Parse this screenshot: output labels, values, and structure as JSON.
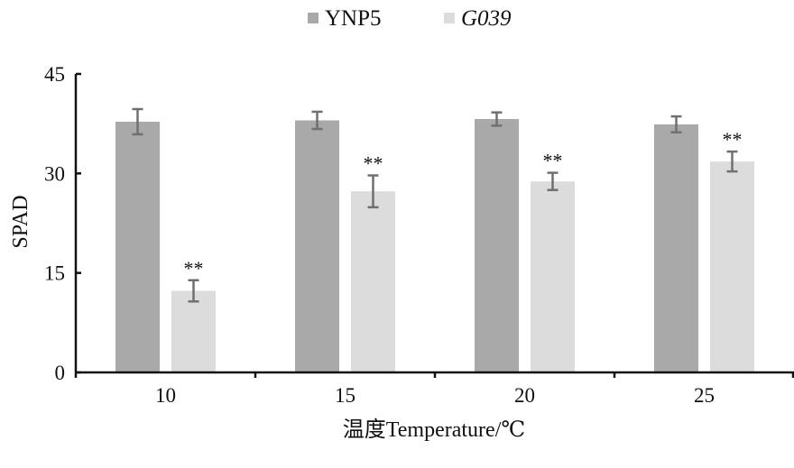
{
  "chart_data": {
    "type": "bar",
    "categories": [
      "10",
      "15",
      "20",
      "25"
    ],
    "series": [
      {
        "name": "YNP5",
        "color": "#a9a9a9",
        "values": [
          37.8,
          38.0,
          38.2,
          37.4
        ],
        "errors": [
          1.9,
          1.3,
          1.0,
          1.2
        ],
        "annotations": [
          "",
          "",
          "",
          ""
        ]
      },
      {
        "name": "G039",
        "italic": true,
        "color": "#dcdcdc",
        "values": [
          12.3,
          27.3,
          28.8,
          31.8
        ],
        "errors": [
          1.6,
          2.4,
          1.3,
          1.5
        ],
        "annotations": [
          "**",
          "**",
          "**",
          "**"
        ]
      }
    ],
    "xlabel": "温度Temperature/℃",
    "ylabel": "SPAD",
    "ylim": [
      0,
      45
    ],
    "yticks": [
      "0",
      "15",
      "30",
      "45"
    ],
    "legend_position": "top-center",
    "grid": false,
    "error_bar_color": "#707070",
    "axis_color": "#111111"
  }
}
